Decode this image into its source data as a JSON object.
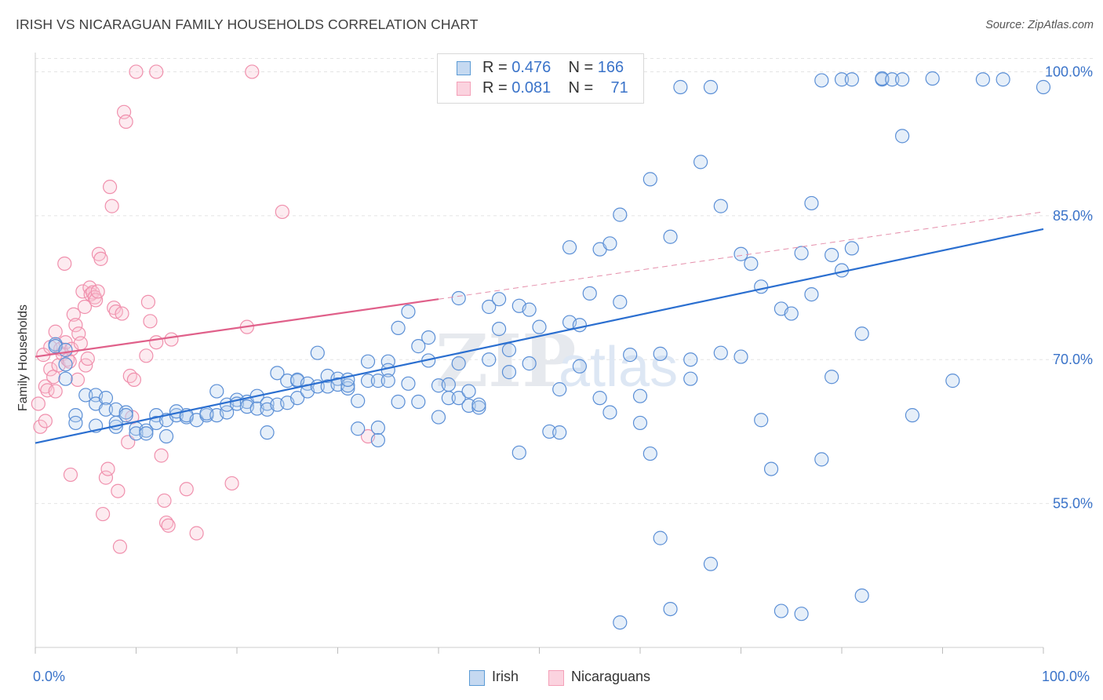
{
  "title": "IRISH VS NICARAGUAN FAMILY HOUSEHOLDS CORRELATION CHART",
  "source": "Source: ZipAtlas.com",
  "watermark": "ZIPatlas",
  "colors": {
    "irish": "#5b9bd5",
    "irish_line": "#2b6fd0",
    "nicaraguans": "#f4a0b8",
    "nicaraguans_line": "#e0608a",
    "axis_label": "#3a73c9"
  },
  "legend": {
    "irish": {
      "r_label": "R = ",
      "r_value": "0.476",
      "n_label": "N = ",
      "n_value": "166"
    },
    "nicaraguans": {
      "r_label": "R = ",
      "r_value": "0.081",
      "n_label": "N = ",
      "n_value": "71"
    }
  },
  "bottom_legend": {
    "irish": "Irish",
    "nicaraguans": "Nicaraguans"
  },
  "chart_data": {
    "type": "scatter",
    "title": "IRISH VS NICARAGUAN FAMILY HOUSEHOLDS CORRELATION CHART",
    "xlabel": "",
    "ylabel": "Family Households",
    "xlim": [
      0,
      100
    ],
    "ylim": [
      40,
      102
    ],
    "x_tick_labels": [
      "0.0%",
      "100.0%"
    ],
    "y_tick_labels": [
      {
        "value": 55,
        "label": "55.0%"
      },
      {
        "value": 70,
        "label": "70.0%"
      },
      {
        "value": 85,
        "label": "85.0%"
      },
      {
        "value": 100,
        "label": "100.0%"
      }
    ],
    "grid": true,
    "legend_position": "top-center",
    "series": [
      {
        "name": "Irish",
        "r": 0.476,
        "n": 166,
        "trend": {
          "x": [
            0,
            100
          ],
          "y": [
            61.3,
            83.6
          ]
        },
        "points": [
          [
            2,
            71.6
          ],
          [
            2,
            71.4
          ],
          [
            3,
            71.0
          ],
          [
            3,
            69.5
          ],
          [
            3,
            68.0
          ],
          [
            4,
            64.2
          ],
          [
            4,
            63.4
          ],
          [
            5,
            66.3
          ],
          [
            6,
            66.3
          ],
          [
            6,
            65.4
          ],
          [
            6,
            63.1
          ],
          [
            7,
            66.0
          ],
          [
            7,
            64.8
          ],
          [
            8,
            63.0
          ],
          [
            8,
            64.8
          ],
          [
            8,
            63.4
          ],
          [
            9,
            64.5
          ],
          [
            9,
            64.2
          ],
          [
            10,
            62.8
          ],
          [
            10,
            62.3
          ],
          [
            11,
            62.6
          ],
          [
            11,
            62.3
          ],
          [
            12,
            64.2
          ],
          [
            12,
            63.4
          ],
          [
            13,
            63.7
          ],
          [
            13,
            62.0
          ],
          [
            14,
            64.2
          ],
          [
            14,
            64.6
          ],
          [
            15,
            64.0
          ],
          [
            15,
            64.2
          ],
          [
            16,
            63.7
          ],
          [
            17,
            64.2
          ],
          [
            17,
            64.4
          ],
          [
            18,
            64.2
          ],
          [
            18,
            66.7
          ],
          [
            19,
            64.5
          ],
          [
            19,
            65.3
          ],
          [
            20,
            65.8
          ],
          [
            20,
            65.4
          ],
          [
            21,
            65.6
          ],
          [
            21,
            65.1
          ],
          [
            22,
            64.9
          ],
          [
            22,
            66.2
          ],
          [
            23,
            62.4
          ],
          [
            23,
            65.4
          ],
          [
            23,
            64.8
          ],
          [
            24,
            68.6
          ],
          [
            24,
            65.3
          ],
          [
            25,
            65.5
          ],
          [
            25,
            67.8
          ],
          [
            26,
            67.8
          ],
          [
            26,
            67.9
          ],
          [
            26,
            66.0
          ],
          [
            27,
            67.5
          ],
          [
            27,
            66.7
          ],
          [
            28,
            70.7
          ],
          [
            28,
            67.2
          ],
          [
            29,
            68.3
          ],
          [
            29,
            67.2
          ],
          [
            30,
            68.0
          ],
          [
            30,
            67.4
          ],
          [
            31,
            67.0
          ],
          [
            31,
            67.3
          ],
          [
            31,
            67.9
          ],
          [
            32,
            65.7
          ],
          [
            32,
            62.8
          ],
          [
            33,
            69.8
          ],
          [
            33,
            67.8
          ],
          [
            34,
            67.8
          ],
          [
            34,
            62.9
          ],
          [
            34,
            61.6
          ],
          [
            35,
            69.8
          ],
          [
            35,
            68.9
          ],
          [
            35,
            67.8
          ],
          [
            36,
            73.3
          ],
          [
            36,
            65.6
          ],
          [
            37,
            75.0
          ],
          [
            37,
            67.5
          ],
          [
            38,
            65.6
          ],
          [
            38,
            71.4
          ],
          [
            39,
            69.9
          ],
          [
            39,
            72.3
          ],
          [
            40,
            64.0
          ],
          [
            40,
            67.3
          ],
          [
            41,
            67.4
          ],
          [
            41,
            66.0
          ],
          [
            42,
            76.4
          ],
          [
            42,
            69.6
          ],
          [
            42,
            66.0
          ],
          [
            43,
            66.7
          ],
          [
            43,
            65.2
          ],
          [
            44,
            65.0
          ],
          [
            44,
            65.3
          ],
          [
            45,
            70.0
          ],
          [
            45,
            75.5
          ],
          [
            46,
            76.3
          ],
          [
            46,
            73.2
          ],
          [
            47,
            68.7
          ],
          [
            47,
            71.0
          ],
          [
            48,
            75.6
          ],
          [
            48,
            60.3
          ],
          [
            49,
            75.2
          ],
          [
            49,
            69.6
          ],
          [
            50,
            73.4
          ],
          [
            51,
            62.5
          ],
          [
            52,
            62.4
          ],
          [
            52,
            66.9
          ],
          [
            53,
            81.7
          ],
          [
            53,
            73.9
          ],
          [
            54,
            69.3
          ],
          [
            54,
            73.6
          ],
          [
            55,
            76.9
          ],
          [
            56,
            81.5
          ],
          [
            56,
            66.0
          ],
          [
            57,
            64.5
          ],
          [
            57,
            82.1
          ],
          [
            58,
            76.0
          ],
          [
            58,
            85.1
          ],
          [
            59,
            70.5
          ],
          [
            60,
            66.2
          ],
          [
            60,
            63.4
          ],
          [
            61,
            88.8
          ],
          [
            61,
            60.2
          ],
          [
            62,
            70.6
          ],
          [
            62,
            51.4
          ],
          [
            63,
            82.8
          ],
          [
            64,
            98.4
          ],
          [
            65,
            70.0
          ],
          [
            65,
            68.0
          ],
          [
            66,
            90.6
          ],
          [
            67,
            98.4
          ],
          [
            67,
            48.7
          ],
          [
            68,
            86.0
          ],
          [
            68,
            70.7
          ],
          [
            70,
            70.3
          ],
          [
            70,
            81.0
          ],
          [
            71,
            80.0
          ],
          [
            72,
            77.6
          ],
          [
            72,
            63.7
          ],
          [
            73,
            58.6
          ],
          [
            74,
            75.3
          ],
          [
            75,
            74.8
          ],
          [
            76,
            81.1
          ],
          [
            76,
            43.5
          ],
          [
            77,
            76.8
          ],
          [
            77,
            86.3
          ],
          [
            78,
            99.1
          ],
          [
            78,
            59.6
          ],
          [
            79,
            68.2
          ],
          [
            79,
            80.9
          ],
          [
            80,
            79.3
          ],
          [
            80,
            99.2
          ],
          [
            81,
            81.6
          ],
          [
            81,
            99.2
          ],
          [
            82,
            72.7
          ],
          [
            82,
            45.4
          ],
          [
            84,
            99.2
          ],
          [
            84,
            99.3
          ],
          [
            85,
            99.2
          ],
          [
            86,
            93.3
          ],
          [
            86,
            99.2
          ],
          [
            87,
            64.2
          ],
          [
            89,
            99.3
          ],
          [
            91,
            67.8
          ],
          [
            94,
            99.2
          ],
          [
            96,
            99.2
          ],
          [
            100,
            98.4
          ],
          [
            63,
            44.0
          ],
          [
            74,
            43.8
          ],
          [
            58,
            42.6
          ]
        ]
      },
      {
        "name": "Nicaraguans",
        "r": 0.081,
        "n": 71,
        "trend": {
          "x": [
            0,
            40
          ],
          "y": [
            70.3,
            76.3
          ]
        },
        "trend_dashed": {
          "x": [
            40,
            100
          ],
          "y": [
            76.3,
            85.4
          ]
        },
        "points": [
          [
            0.3,
            65.4
          ],
          [
            0.5,
            63.0
          ],
          [
            0.8,
            70.5
          ],
          [
            1,
            67.2
          ],
          [
            1,
            63.6
          ],
          [
            1.2,
            66.8
          ],
          [
            1.5,
            69.0
          ],
          [
            1.5,
            71.3
          ],
          [
            1.8,
            68.2
          ],
          [
            2,
            72.9
          ],
          [
            2,
            66.7
          ],
          [
            2.3,
            69.4
          ],
          [
            2.5,
            71.1
          ],
          [
            2.7,
            70.6
          ],
          [
            2.9,
            80.0
          ],
          [
            3,
            71.8
          ],
          [
            3.2,
            70.0
          ],
          [
            3.4,
            69.8
          ],
          [
            3.6,
            71.1
          ],
          [
            3.8,
            74.7
          ],
          [
            4,
            73.6
          ],
          [
            4.2,
            67.9
          ],
          [
            4.3,
            72.7
          ],
          [
            4.5,
            71.7
          ],
          [
            4.7,
            77.1
          ],
          [
            4.9,
            75.5
          ],
          [
            5,
            69.4
          ],
          [
            5.2,
            70.1
          ],
          [
            5.4,
            77.5
          ],
          [
            5.5,
            76.8
          ],
          [
            5.7,
            77.0
          ],
          [
            5.9,
            76.5
          ],
          [
            6,
            76.2
          ],
          [
            6.2,
            77.1
          ],
          [
            6.3,
            81.0
          ],
          [
            6.5,
            80.5
          ],
          [
            6.7,
            53.9
          ],
          [
            7,
            57.7
          ],
          [
            7.2,
            58.6
          ],
          [
            7.4,
            88.0
          ],
          [
            7.6,
            86.0
          ],
          [
            7.8,
            75.4
          ],
          [
            8,
            75.0
          ],
          [
            8.2,
            56.3
          ],
          [
            8.4,
            50.5
          ],
          [
            8.6,
            74.8
          ],
          [
            8.8,
            95.8
          ],
          [
            9,
            94.8
          ],
          [
            9.2,
            61.4
          ],
          [
            9.4,
            68.3
          ],
          [
            9.6,
            64.0
          ],
          [
            9.8,
            67.9
          ],
          [
            10,
            100
          ],
          [
            11,
            70.4
          ],
          [
            11.2,
            76.0
          ],
          [
            11.4,
            74.0
          ],
          [
            12,
            71.8
          ],
          [
            12,
            100
          ],
          [
            12.5,
            60.0
          ],
          [
            12.8,
            55.3
          ],
          [
            13,
            53.0
          ],
          [
            13.2,
            52.7
          ],
          [
            13.5,
            72.1
          ],
          [
            15,
            56.5
          ],
          [
            16,
            51.9
          ],
          [
            19.5,
            57.1
          ],
          [
            21,
            73.4
          ],
          [
            21.5,
            100
          ],
          [
            24.5,
            85.4
          ],
          [
            33,
            62.0
          ],
          [
            3.5,
            58.0
          ]
        ]
      }
    ]
  }
}
